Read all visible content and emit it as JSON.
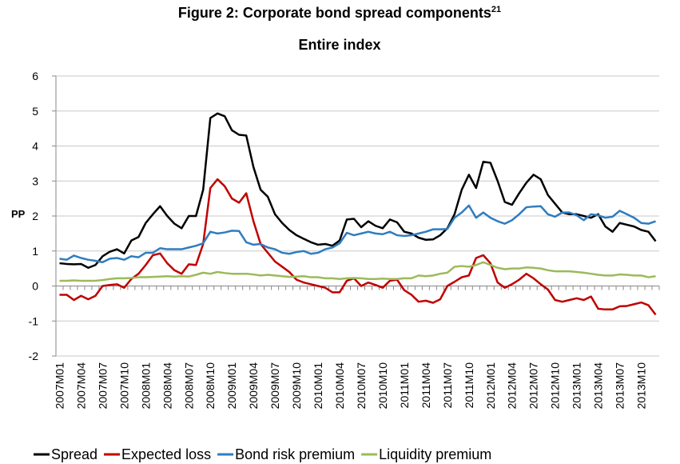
{
  "chart_data": {
    "type": "line",
    "title": "Figure 2: Corporate bond spread components",
    "title_superscript": "21",
    "subtitle": "Entire index",
    "y_label": "PP",
    "categories": [
      "2007M01",
      null,
      null,
      "2007M04",
      null,
      null,
      "2007M07",
      null,
      null,
      "2007M10",
      null,
      null,
      "2008M01",
      null,
      null,
      "2008M04",
      null,
      null,
      "2008M07",
      null,
      null,
      "2008M10",
      null,
      null,
      "2009M01",
      null,
      null,
      "2009M04",
      null,
      null,
      "2009M07",
      null,
      null,
      "2009M10",
      null,
      null,
      "2010M01",
      null,
      null,
      "2010M04",
      null,
      null,
      "2010M07",
      null,
      null,
      "2010M10",
      null,
      null,
      "2011M01",
      null,
      null,
      "2011M04",
      null,
      null,
      "2011M07",
      null,
      null,
      "2011M10",
      null,
      null,
      "2012M01",
      null,
      null,
      "2012M04",
      null,
      null,
      "2012M07",
      null,
      null,
      "2012M10",
      null,
      null,
      "2013M01",
      null,
      null,
      "2013M04",
      null,
      null,
      "2013M07",
      null,
      null,
      "2013M10",
      null,
      null
    ],
    "series": [
      {
        "name": "Spread",
        "color": "#000000",
        "values": [
          0.65,
          0.63,
          0.62,
          0.63,
          0.52,
          0.6,
          0.85,
          0.98,
          1.05,
          0.93,
          1.3,
          1.4,
          1.8,
          2.05,
          2.28,
          2.0,
          1.78,
          1.65,
          2.0,
          2.0,
          2.75,
          4.8,
          4.93,
          4.85,
          4.45,
          4.32,
          4.3,
          3.4,
          2.75,
          2.55,
          2.05,
          1.8,
          1.6,
          1.45,
          1.35,
          1.25,
          1.18,
          1.2,
          1.15,
          1.3,
          1.9,
          1.92,
          1.68,
          1.85,
          1.72,
          1.65,
          1.9,
          1.82,
          1.55,
          1.5,
          1.38,
          1.32,
          1.33,
          1.45,
          1.65,
          2.05,
          2.75,
          3.18,
          2.8,
          3.55,
          3.52,
          3.0,
          2.4,
          2.32,
          2.65,
          2.95,
          3.18,
          3.05,
          2.6,
          2.35,
          2.1,
          2.05,
          2.05,
          2.0,
          1.95,
          2.05,
          1.7,
          1.55,
          1.8,
          1.75,
          1.7,
          1.6,
          1.55,
          1.28
        ]
      },
      {
        "name": "Expected loss",
        "color": "#c00000",
        "values": [
          -0.25,
          -0.25,
          -0.4,
          -0.28,
          -0.38,
          -0.28,
          0.0,
          0.03,
          0.05,
          -0.05,
          0.2,
          0.35,
          0.6,
          0.88,
          0.93,
          0.65,
          0.45,
          0.35,
          0.62,
          0.6,
          1.2,
          2.8,
          3.05,
          2.85,
          2.5,
          2.38,
          2.65,
          1.85,
          1.2,
          0.95,
          0.7,
          0.55,
          0.4,
          0.18,
          0.1,
          0.05,
          0.0,
          -0.05,
          -0.18,
          -0.18,
          0.15,
          0.22,
          0.0,
          0.1,
          0.03,
          -0.05,
          0.15,
          0.18,
          -0.12,
          -0.25,
          -0.45,
          -0.42,
          -0.48,
          -0.38,
          0.0,
          0.12,
          0.25,
          0.3,
          0.8,
          0.88,
          0.65,
          0.1,
          -0.05,
          0.05,
          0.18,
          0.35,
          0.22,
          0.05,
          -0.1,
          -0.4,
          -0.45,
          -0.4,
          -0.35,
          -0.4,
          -0.3,
          -0.65,
          -0.67,
          -0.67,
          -0.58,
          -0.57,
          -0.52,
          -0.47,
          -0.55,
          -0.82
        ]
      },
      {
        "name": "Bond risk premium",
        "color": "#2f7cc0",
        "values": [
          0.78,
          0.75,
          0.87,
          0.8,
          0.75,
          0.72,
          0.68,
          0.78,
          0.8,
          0.75,
          0.85,
          0.82,
          0.95,
          0.95,
          1.08,
          1.05,
          1.05,
          1.05,
          1.1,
          1.15,
          1.22,
          1.55,
          1.5,
          1.53,
          1.58,
          1.57,
          1.25,
          1.18,
          1.2,
          1.1,
          1.05,
          0.95,
          0.92,
          0.97,
          1.0,
          0.92,
          0.95,
          1.05,
          1.1,
          1.22,
          1.52,
          1.45,
          1.5,
          1.55,
          1.5,
          1.48,
          1.55,
          1.45,
          1.43,
          1.45,
          1.5,
          1.55,
          1.62,
          1.62,
          1.63,
          1.95,
          2.1,
          2.3,
          1.95,
          2.1,
          1.95,
          1.85,
          1.78,
          1.88,
          2.05,
          2.25,
          2.27,
          2.28,
          2.05,
          1.98,
          2.1,
          2.1,
          2.02,
          1.88,
          2.05,
          2.02,
          1.95,
          1.98,
          2.15,
          2.05,
          1.95,
          1.8,
          1.78,
          1.85
        ]
      },
      {
        "name": "Liquidity premium",
        "color": "#9bbb59",
        "values": [
          0.15,
          0.15,
          0.16,
          0.15,
          0.15,
          0.15,
          0.17,
          0.2,
          0.22,
          0.22,
          0.23,
          0.25,
          0.25,
          0.26,
          0.27,
          0.28,
          0.27,
          0.28,
          0.27,
          0.32,
          0.38,
          0.35,
          0.4,
          0.37,
          0.35,
          0.35,
          0.35,
          0.33,
          0.3,
          0.32,
          0.3,
          0.28,
          0.26,
          0.27,
          0.28,
          0.25,
          0.25,
          0.22,
          0.22,
          0.2,
          0.22,
          0.23,
          0.22,
          0.2,
          0.2,
          0.21,
          0.2,
          0.2,
          0.22,
          0.22,
          0.3,
          0.28,
          0.3,
          0.35,
          0.38,
          0.55,
          0.57,
          0.55,
          0.6,
          0.68,
          0.6,
          0.52,
          0.48,
          0.5,
          0.5,
          0.53,
          0.52,
          0.5,
          0.45,
          0.42,
          0.42,
          0.42,
          0.4,
          0.38,
          0.35,
          0.32,
          0.3,
          0.3,
          0.33,
          0.32,
          0.3,
          0.3,
          0.25,
          0.28
        ]
      }
    ],
    "ylim": [
      -2,
      6
    ],
    "yticks": [
      -2,
      -1,
      0,
      1,
      2,
      3,
      4,
      5,
      6
    ],
    "grid": true,
    "legend": "bottom"
  }
}
